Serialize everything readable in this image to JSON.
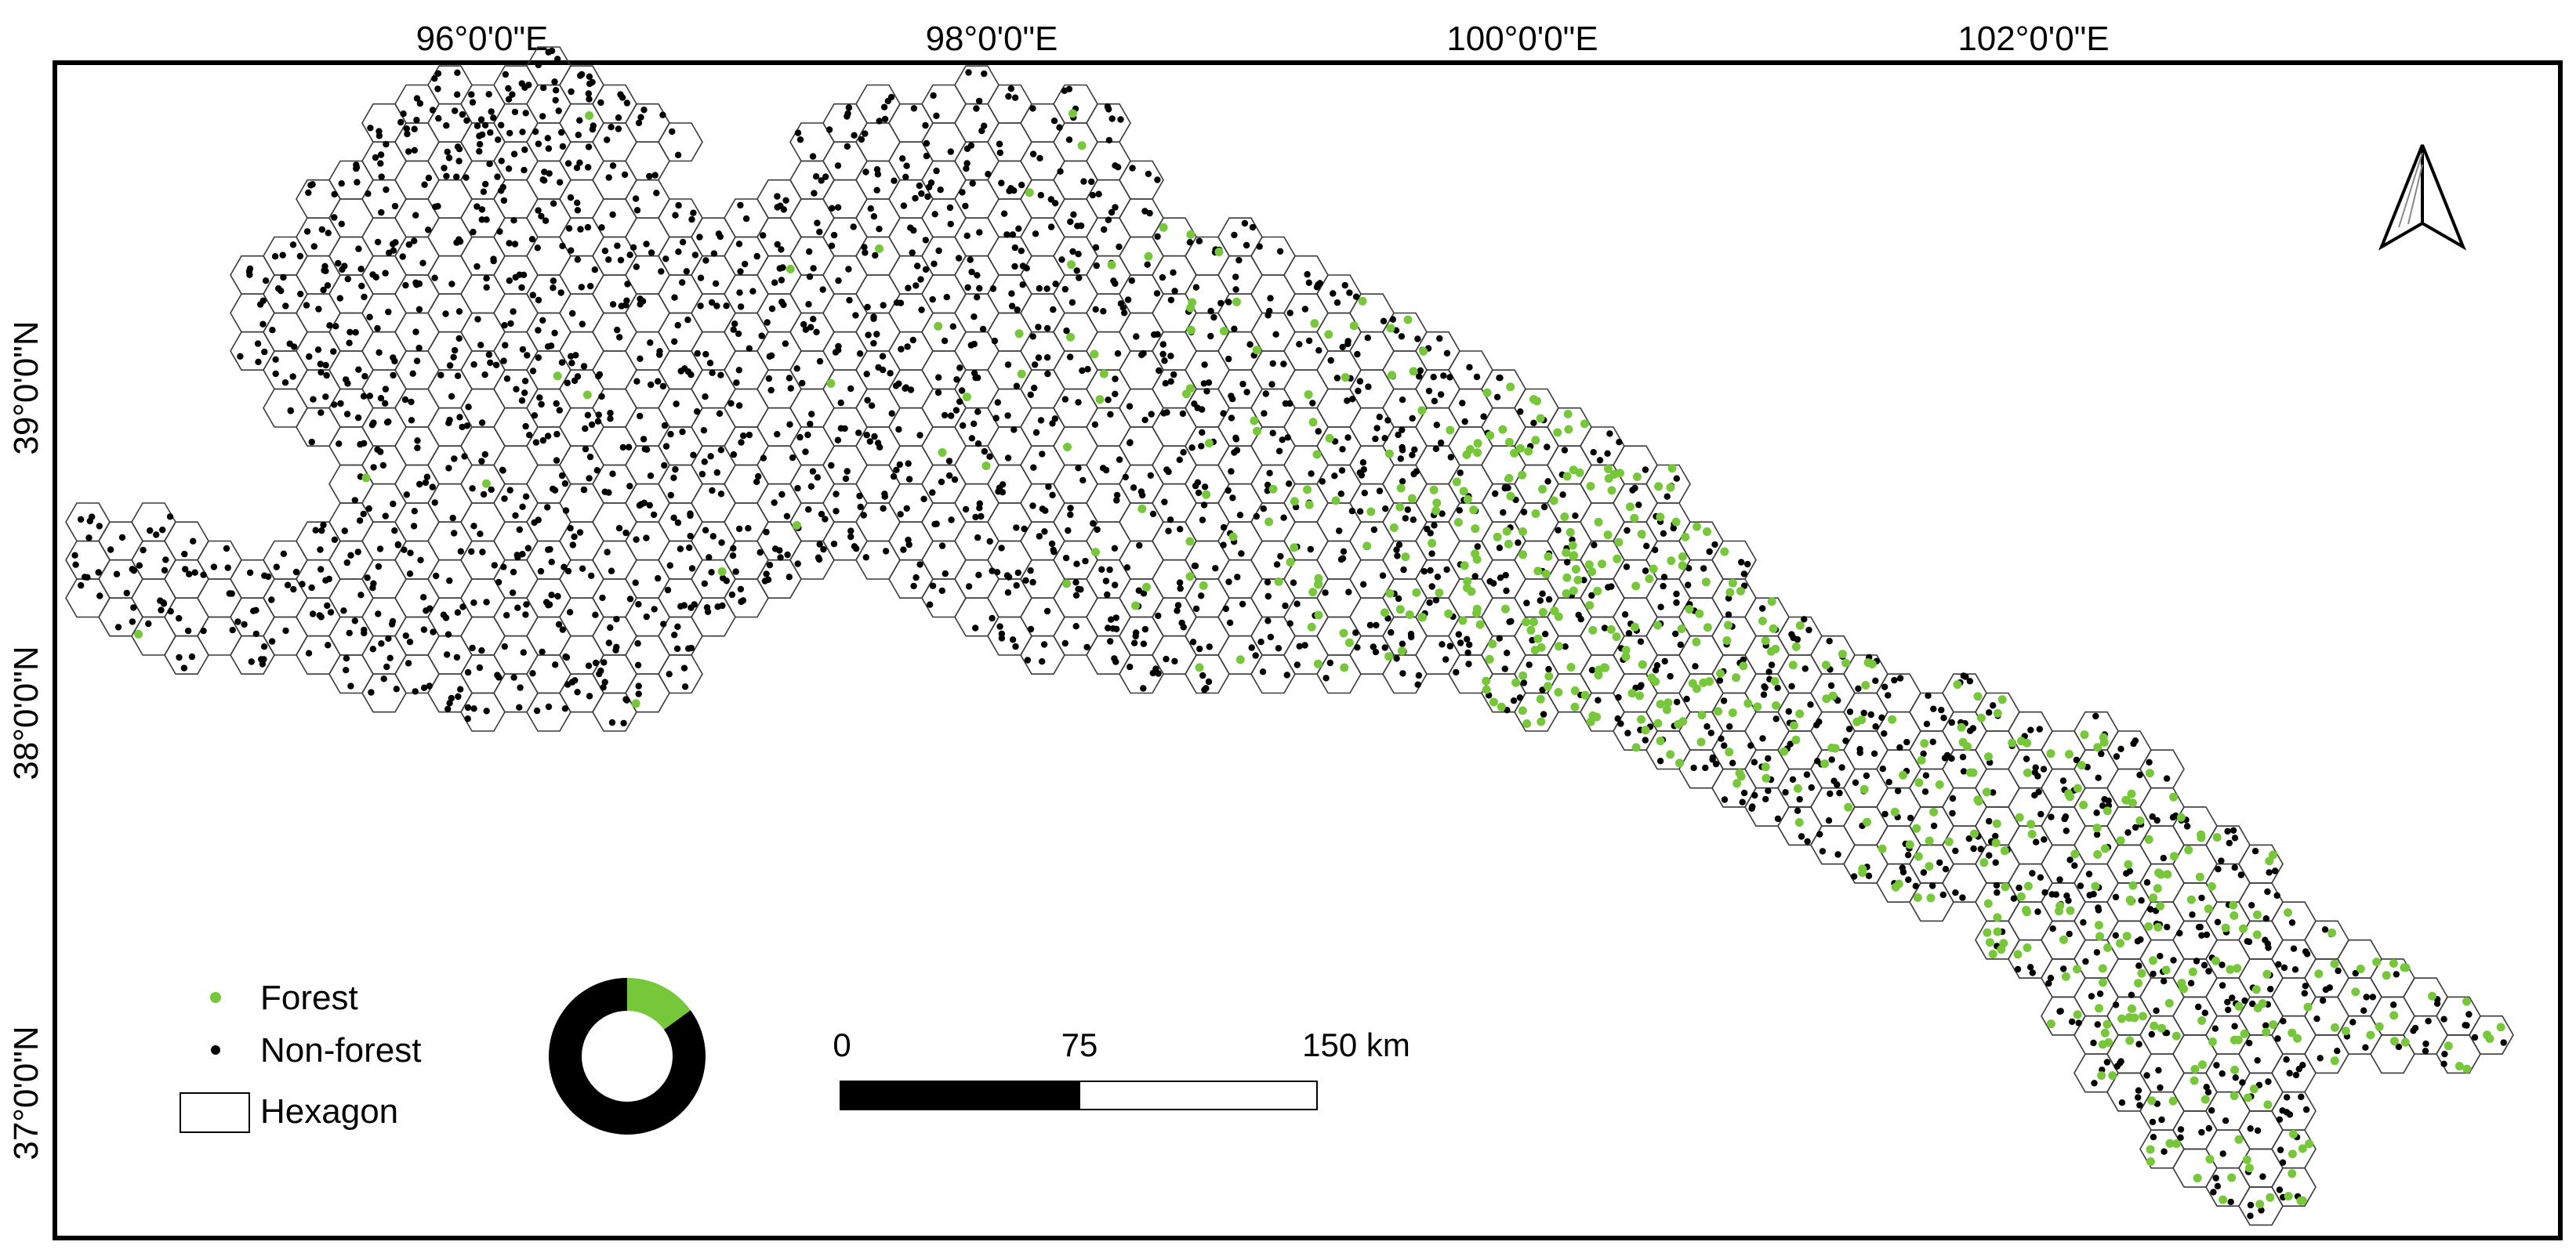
{
  "map": {
    "longitude_labels": [
      "96°0'0\"E",
      "98°0'0\"E",
      "100°0'0\"E",
      "102°0'0\"E"
    ],
    "latitude_labels": [
      "39°0'0\"N",
      "38°0'0\"N",
      "37°0'0\"N"
    ]
  },
  "legend": {
    "forest_label": "Forest",
    "nonforest_label": "Non-forest",
    "hexagon_label": "Hexagon"
  },
  "colors": {
    "forest": "#77c73a",
    "nonforest": "#000000",
    "hex_stroke": "#3a3a3a"
  },
  "donut": {
    "forest_fraction": 0.15
  },
  "scale_bar": {
    "label_0": "0",
    "label_75": "75",
    "label_150": "150 km"
  },
  "icons": {
    "north": "north-arrow-icon"
  }
}
